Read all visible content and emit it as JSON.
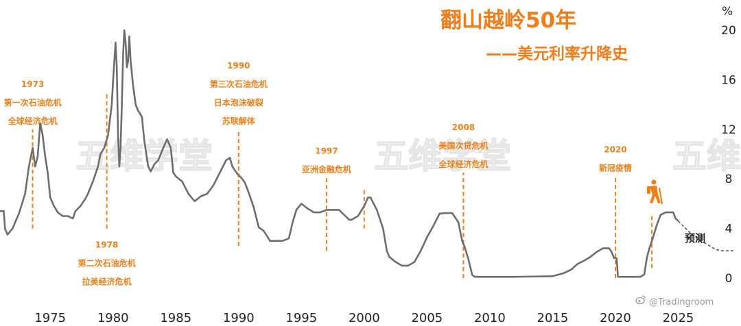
{
  "title": "翻山越岭50年",
  "subtitle": "——美元利率升降史",
  "unit_label": "%",
  "watermark_text": "五维学堂",
  "credit": "@Tradingroom",
  "forecast_label": "预测",
  "colors": {
    "line": "#6d6d6d",
    "accent": "#e8821f",
    "title": "#ee7d1a",
    "watermark": "#e5e5e5"
  },
  "icon": "hiker-icon",
  "chart_data": {
    "type": "line",
    "title": "翻山越岭50年",
    "subtitle": "——美元利率升降史",
    "ylabel": "%",
    "xlim": [
      1971,
      2030
    ],
    "ylim": [
      0,
      20
    ],
    "y_ticks": [
      0,
      4,
      8,
      12,
      16,
      20
    ],
    "x_ticks": [
      1975,
      1980,
      1985,
      1990,
      1995,
      2000,
      2005,
      2010,
      2015,
      2020,
      2025
    ],
    "grid": false,
    "series": [
      {
        "x": [
          1971.0,
          1971.3,
          1971.4,
          1971.6,
          1972.0,
          1972.5,
          1973.0,
          1973.3,
          1973.5,
          1973.6,
          1973.8,
          1974.0,
          1974.2,
          1974.4,
          1974.6,
          1974.8,
          1975.0,
          1975.3,
          1975.6,
          1976.0,
          1976.4,
          1976.8,
          1977.0,
          1977.4,
          1977.8,
          1978.0,
          1978.4,
          1978.8,
          1979.0,
          1979.3,
          1979.6,
          1979.9,
          1980.0,
          1980.2,
          1980.3,
          1980.4,
          1980.5,
          1980.6,
          1980.7,
          1980.8,
          1980.9,
          1981.0,
          1981.1,
          1981.2,
          1981.3,
          1981.4,
          1981.6,
          1981.8,
          1982.0,
          1982.3,
          1982.5,
          1982.8,
          1983.0,
          1983.3,
          1983.6,
          1984.0,
          1984.3,
          1984.6,
          1984.8,
          1985.0,
          1985.5,
          1986.0,
          1986.5,
          1987.0,
          1987.5,
          1988.0,
          1988.5,
          1989.0,
          1989.3,
          1989.5,
          1989.9,
          1990.2,
          1990.5,
          1990.8,
          1991.2,
          1991.6,
          1992.0,
          1992.5,
          1993.0,
          1993.5,
          1994.0,
          1994.3,
          1994.6,
          1995.0,
          1995.5,
          1996.0,
          1996.5,
          1997.0,
          1997.5,
          1998.0,
          1998.5,
          1998.8,
          1999.0,
          1999.5,
          2000.0,
          2000.3,
          2000.5,
          2001.0,
          2001.5,
          2001.8,
          2002.0,
          2002.5,
          2003.0,
          2003.5,
          2004.0,
          2004.5,
          2005.0,
          2005.5,
          2006.0,
          2006.5,
          2007.0,
          2007.5,
          2007.8,
          2008.0,
          2008.3,
          2008.6,
          2008.8,
          2009.0,
          2012.0,
          2015.0,
          2015.9,
          2016.5,
          2017.0,
          2017.5,
          2018.0,
          2018.5,
          2019.0,
          2019.5,
          2019.7,
          2019.9,
          2020.1,
          2020.2,
          2021.0,
          2022.0,
          2022.3,
          2022.5,
          2022.7,
          2023.0,
          2023.3,
          2023.6,
          2024.0,
          2024.6,
          2024.8,
          2025.0
        ],
        "y": [
          5.4,
          5.4,
          4.0,
          3.5,
          4.0,
          5.2,
          6.8,
          9.0,
          10.0,
          10.5,
          9.0,
          9.8,
          12.5,
          11.5,
          9.8,
          8.5,
          6.5,
          5.8,
          5.3,
          5.0,
          5.0,
          4.8,
          5.4,
          5.8,
          6.4,
          6.8,
          7.8,
          9.0,
          10.0,
          10.5,
          11.5,
          14.0,
          15.8,
          19.0,
          17.0,
          11.5,
          9.0,
          10.5,
          14.0,
          18.0,
          20.0,
          19.0,
          17.0,
          17.5,
          19.5,
          17.5,
          15.5,
          14.0,
          13.5,
          13.0,
          11.0,
          9.0,
          8.6,
          9.2,
          9.5,
          10.5,
          11.2,
          10.5,
          8.5,
          8.2,
          7.8,
          6.8,
          6.2,
          6.6,
          6.8,
          7.5,
          8.5,
          9.5,
          9.7,
          9.0,
          8.4,
          8.1,
          7.7,
          6.9,
          5.7,
          4.1,
          3.8,
          3.0,
          3.0,
          3.0,
          3.2,
          4.5,
          5.5,
          6.0,
          5.6,
          5.3,
          5.3,
          5.5,
          5.5,
          5.5,
          5.0,
          4.7,
          4.7,
          5.0,
          5.8,
          6.5,
          6.5,
          5.5,
          4.0,
          2.2,
          1.7,
          1.3,
          1.0,
          1.0,
          1.3,
          2.2,
          3.3,
          4.2,
          5.2,
          5.25,
          5.25,
          4.5,
          3.0,
          2.5,
          1.5,
          0.25,
          0.1,
          0.1,
          0.1,
          0.15,
          0.4,
          0.7,
          1.15,
          1.4,
          1.7,
          2.1,
          2.4,
          2.4,
          2.1,
          1.6,
          1.6,
          0.1,
          0.1,
          0.1,
          0.3,
          1.6,
          2.4,
          3.3,
          4.3,
          5.1,
          5.3,
          5.3,
          4.8,
          4.6
        ]
      },
      {
        "name": "预测",
        "x": [
          2025.0,
          2025.5,
          2026.0,
          2026.5,
          2027.0,
          2027.5,
          2028.0,
          2028.5,
          2029.0,
          2029.5
        ],
        "y": [
          4.6,
          4.1,
          3.6,
          3.2,
          2.9,
          2.6,
          2.3,
          2.2,
          2.2,
          2.2
        ]
      }
    ],
    "events": [
      {
        "year": 1973,
        "x": 1973.6,
        "y_range": [
          4,
          12
        ],
        "lines": [
          "1973",
          "第一次石油危机",
          "全球经济危机"
        ],
        "label_position": "above"
      },
      {
        "year": 1978,
        "x": 1979.5,
        "y_range": [
          4,
          15
        ],
        "lines": [
          "1978",
          "第二次石油危机",
          "拉美经济危机"
        ],
        "label_position": "below"
      },
      {
        "year": 1990,
        "x": 1990.0,
        "y_range": [
          2.6,
          12
        ],
        "lines": [
          "1990",
          "第三次石油危机",
          "日本泡沫破裂",
          "苏联解体"
        ],
        "label_position": "above"
      },
      {
        "year": 1997,
        "x": 1997.0,
        "y_range": [
          2.2,
          8.1
        ],
        "lines": [
          "1997",
          "亚洲金融危机"
        ],
        "label_position": "above"
      },
      {
        "year": 2000,
        "x": 2000.0,
        "y_range": [
          4,
          7.1
        ],
        "lines": [],
        "label_position": "none"
      },
      {
        "year": 2008,
        "x": 2007.9,
        "y_range": [
          0,
          8.5
        ],
        "lines": [
          "2008",
          "美国次贷危机",
          "全球经济危机"
        ],
        "label_position": "above"
      },
      {
        "year": 2020,
        "x": 2020.0,
        "y_range": [
          0,
          8.2
        ],
        "lines": [
          "2020",
          "新冠疫情"
        ],
        "label_position": "above"
      },
      {
        "year": 2023,
        "x": 2022.9,
        "y_range": [
          0.8,
          5.2
        ],
        "lines": [],
        "label_position": "none"
      }
    ]
  }
}
